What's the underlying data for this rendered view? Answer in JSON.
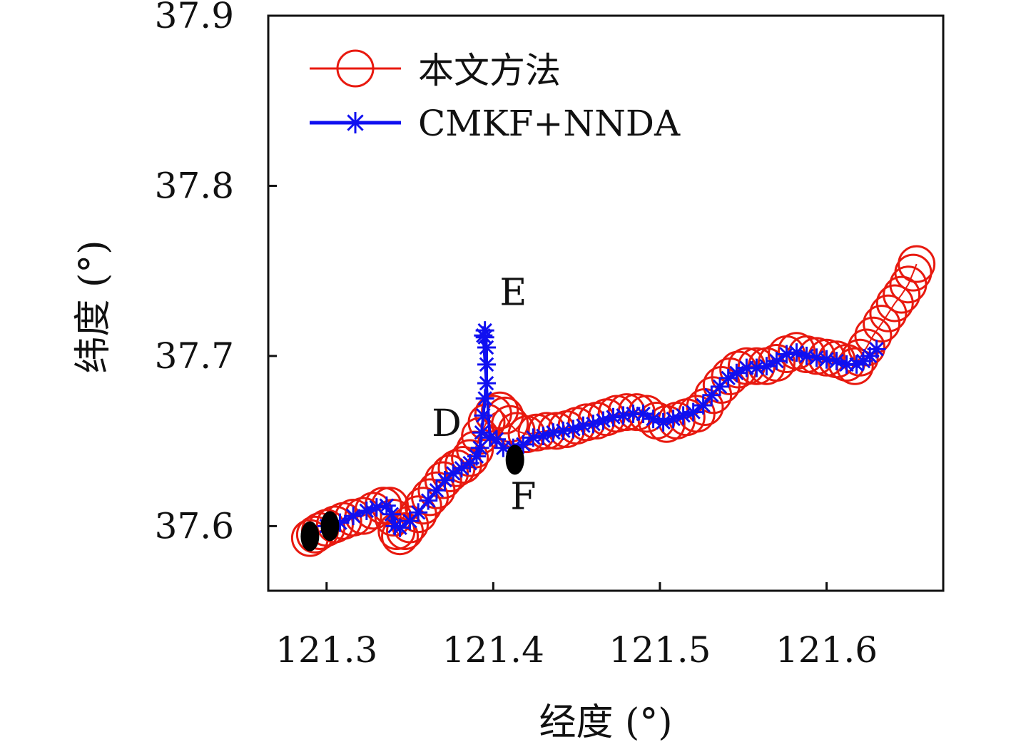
{
  "chart_data": {
    "type": "scatter",
    "xlabel": "经度 (°)",
    "ylabel": "纬度 (°)",
    "xlim": [
      121.265,
      121.67
    ],
    "ylim": [
      37.562,
      37.9
    ],
    "xticks": [
      "121.3",
      "121.4",
      "121.5",
      "121.6"
    ],
    "yticks": [
      "37.6",
      "37.7",
      "37.8",
      "37.9"
    ],
    "grid": false,
    "legend_position": "top-left",
    "annotations": [
      {
        "text": "D",
        "x": 121.372,
        "y": 37.653
      },
      {
        "text": "E",
        "x": 121.412,
        "y": 37.73
      },
      {
        "text": "F",
        "x": 121.418,
        "y": 37.61
      }
    ],
    "colors": {
      "proposed": "#e8190f",
      "cmkf": "#1010f0",
      "endpoints": "#000000"
    },
    "series": [
      {
        "name": "本文方法",
        "marker": "circle",
        "points": [
          [
            121.29,
            37.593
          ],
          [
            121.293,
            37.595
          ],
          [
            121.296,
            37.597
          ],
          [
            121.3,
            37.599
          ],
          [
            121.305,
            37.601
          ],
          [
            121.31,
            37.603
          ],
          [
            121.316,
            37.605
          ],
          [
            121.322,
            37.606
          ],
          [
            121.328,
            37.609
          ],
          [
            121.334,
            37.612
          ],
          [
            121.338,
            37.612
          ],
          [
            121.34,
            37.605
          ],
          [
            121.342,
            37.597
          ],
          [
            121.344,
            37.594
          ],
          [
            121.347,
            37.597
          ],
          [
            121.35,
            37.601
          ],
          [
            121.355,
            37.607
          ],
          [
            121.358,
            37.612
          ],
          [
            121.362,
            37.617
          ],
          [
            121.366,
            37.621
          ],
          [
            121.37,
            37.627
          ],
          [
            121.374,
            37.631
          ],
          [
            121.378,
            37.634
          ],
          [
            121.382,
            37.636
          ],
          [
            121.386,
            37.64
          ],
          [
            121.389,
            37.645
          ],
          [
            121.392,
            37.653
          ],
          [
            121.396,
            37.661
          ],
          [
            121.4,
            37.666
          ],
          [
            121.404,
            37.668
          ],
          [
            121.407,
            37.665
          ],
          [
            121.41,
            37.66
          ],
          [
            121.414,
            37.656
          ],
          [
            121.42,
            37.654
          ],
          [
            121.426,
            37.655
          ],
          [
            121.432,
            37.656
          ],
          [
            121.438,
            37.656
          ],
          [
            121.444,
            37.657
          ],
          [
            121.45,
            37.659
          ],
          [
            121.456,
            37.661
          ],
          [
            121.462,
            37.662
          ],
          [
            121.468,
            37.664
          ],
          [
            121.474,
            37.666
          ],
          [
            121.48,
            37.667
          ],
          [
            121.486,
            37.667
          ],
          [
            121.492,
            37.666
          ],
          [
            121.498,
            37.662
          ],
          [
            121.504,
            37.66
          ],
          [
            121.51,
            37.662
          ],
          [
            121.516,
            37.664
          ],
          [
            121.522,
            37.666
          ],
          [
            121.527,
            37.67
          ],
          [
            121.532,
            37.677
          ],
          [
            121.537,
            37.683
          ],
          [
            121.542,
            37.688
          ],
          [
            121.547,
            37.692
          ],
          [
            121.552,
            37.694
          ],
          [
            121.558,
            37.694
          ],
          [
            121.564,
            37.694
          ],
          [
            121.57,
            37.696
          ],
          [
            121.576,
            37.701
          ],
          [
            121.582,
            37.703
          ],
          [
            121.588,
            37.701
          ],
          [
            121.594,
            37.7
          ],
          [
            121.6,
            37.699
          ],
          [
            121.606,
            37.698
          ],
          [
            121.612,
            37.696
          ],
          [
            121.617,
            37.694
          ],
          [
            121.62,
            37.699
          ],
          [
            121.624,
            37.705
          ],
          [
            121.628,
            37.712
          ],
          [
            121.633,
            37.719
          ],
          [
            121.637,
            37.725
          ],
          [
            121.641,
            37.731
          ],
          [
            121.645,
            37.736
          ],
          [
            121.649,
            37.742
          ],
          [
            121.652,
            37.749
          ],
          [
            121.654,
            37.754
          ]
        ]
      },
      {
        "name": "CMKF+NNDA",
        "marker": "star",
        "points": [
          [
            121.3,
            37.6
          ],
          [
            121.308,
            37.602
          ],
          [
            121.316,
            37.606
          ],
          [
            121.324,
            37.609
          ],
          [
            121.33,
            37.611
          ],
          [
            121.336,
            37.612
          ],
          [
            121.339,
            37.607
          ],
          [
            121.341,
            37.6
          ],
          [
            121.344,
            37.599
          ],
          [
            121.35,
            37.603
          ],
          [
            121.355,
            37.608
          ],
          [
            121.361,
            37.615
          ],
          [
            121.366,
            37.621
          ],
          [
            121.371,
            37.627
          ],
          [
            121.376,
            37.631
          ],
          [
            121.381,
            37.634
          ],
          [
            121.386,
            37.637
          ],
          [
            121.39,
            37.641
          ],
          [
            121.392,
            37.646
          ],
          [
            121.393,
            37.655
          ],
          [
            121.394,
            37.665
          ],
          [
            121.395,
            37.675
          ],
          [
            121.396,
            37.684
          ],
          [
            121.396,
            37.695
          ],
          [
            121.396,
            37.705
          ],
          [
            121.395,
            37.711
          ],
          [
            121.395,
            37.715
          ],
          [
            121.394,
            37.712
          ],
          [
            121.398,
            37.652
          ],
          [
            121.402,
            37.651
          ],
          [
            121.406,
            37.646
          ],
          [
            121.412,
            37.646
          ],
          [
            121.418,
            37.648
          ],
          [
            121.424,
            37.652
          ],
          [
            121.43,
            37.653
          ],
          [
            121.436,
            37.655
          ],
          [
            121.442,
            37.656
          ],
          [
            121.448,
            37.657
          ],
          [
            121.454,
            37.659
          ],
          [
            121.46,
            37.66
          ],
          [
            121.466,
            37.662
          ],
          [
            121.472,
            37.664
          ],
          [
            121.478,
            37.665
          ],
          [
            121.484,
            37.666
          ],
          [
            121.49,
            37.666
          ],
          [
            121.496,
            37.663
          ],
          [
            121.502,
            37.661
          ],
          [
            121.508,
            37.663
          ],
          [
            121.514,
            37.665
          ],
          [
            121.52,
            37.667
          ],
          [
            121.526,
            37.671
          ],
          [
            121.531,
            37.677
          ],
          [
            121.536,
            37.682
          ],
          [
            121.541,
            37.687
          ],
          [
            121.546,
            37.69
          ],
          [
            121.552,
            37.693
          ],
          [
            121.558,
            37.693
          ],
          [
            121.564,
            37.694
          ],
          [
            121.57,
            37.697
          ],
          [
            121.576,
            37.701
          ],
          [
            121.582,
            37.702
          ],
          [
            121.588,
            37.7
          ],
          [
            121.594,
            37.699
          ],
          [
            121.6,
            37.698
          ],
          [
            121.606,
            37.697
          ],
          [
            121.612,
            37.695
          ],
          [
            121.618,
            37.695
          ],
          [
            121.622,
            37.697
          ],
          [
            121.626,
            37.7
          ],
          [
            121.63,
            37.704
          ]
        ]
      }
    ],
    "endpoints": [
      [
        121.29,
        37.594
      ],
      [
        121.302,
        37.6
      ],
      [
        121.413,
        37.639
      ]
    ]
  }
}
